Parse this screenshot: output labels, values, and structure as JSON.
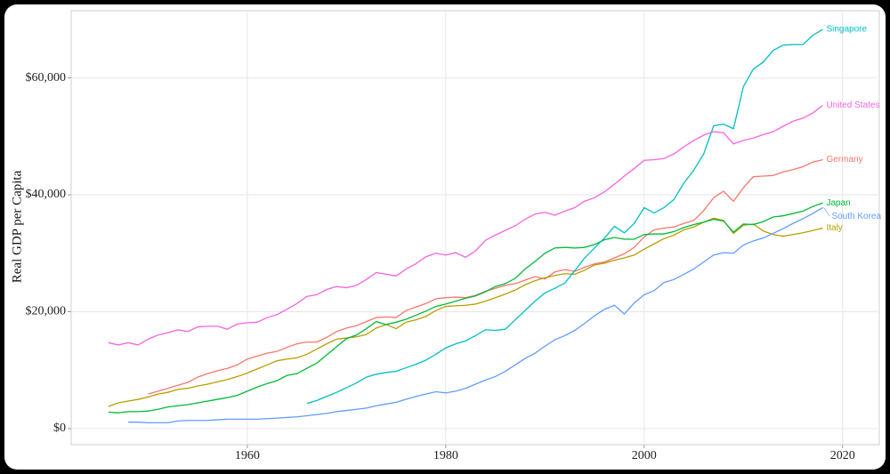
{
  "chart_data": {
    "type": "line",
    "y_label": "Real GDP per Capita",
    "x": [
      1946,
      1947,
      1948,
      1949,
      1950,
      1951,
      1952,
      1953,
      1954,
      1955,
      1956,
      1957,
      1958,
      1959,
      1960,
      1961,
      1962,
      1963,
      1964,
      1965,
      1966,
      1967,
      1968,
      1969,
      1970,
      1971,
      1972,
      1973,
      1974,
      1975,
      1976,
      1977,
      1978,
      1979,
      1980,
      1981,
      1982,
      1983,
      1984,
      1985,
      1986,
      1987,
      1988,
      1989,
      1990,
      1991,
      1992,
      1993,
      1994,
      1995,
      1996,
      1997,
      1998,
      1999,
      2000,
      2001,
      2002,
      2003,
      2004,
      2005,
      2006,
      2007,
      2008,
      2009,
      2010,
      2011,
      2012,
      2013,
      2014,
      2015,
      2016,
      2017,
      2018
    ],
    "series": [
      {
        "name": "Germany",
        "color": "#F8766D",
        "values": [
          null,
          null,
          null,
          null,
          5900,
          6400,
          6900,
          7400,
          7900,
          8800,
          9400,
          9900,
          10300,
          10900,
          11900,
          12400,
          12900,
          13200,
          13900,
          14500,
          14800,
          14800,
          15600,
          16600,
          17200,
          17600,
          18300,
          19000,
          19100,
          19000,
          20200,
          20800,
          21400,
          22200,
          22400,
          22500,
          22400,
          22800,
          23500,
          24000,
          24500,
          24800,
          25400,
          26000,
          25600,
          26800,
          27200,
          26900,
          27600,
          28200,
          28500,
          29200,
          29900,
          31000,
          32800,
          34000,
          34300,
          34500,
          35100,
          35600,
          37300,
          39500,
          40600,
          38900,
          41200,
          43100,
          43200,
          43300,
          43900,
          44300,
          44800,
          45600,
          46000
        ]
      },
      {
        "name": "Italy",
        "color": "#B79F00",
        "values": [
          3800,
          4400,
          4700,
          5000,
          5400,
          5900,
          6200,
          6700,
          6900,
          7300,
          7600,
          8000,
          8400,
          8900,
          9500,
          10200,
          10900,
          11600,
          11900,
          12100,
          12700,
          13600,
          14500,
          15300,
          15500,
          15700,
          16100,
          17200,
          17800,
          17100,
          18200,
          18600,
          19200,
          20200,
          20900,
          21000,
          21100,
          21300,
          21800,
          22400,
          23000,
          23700,
          24600,
          25300,
          25800,
          26200,
          26500,
          26400,
          27100,
          28000,
          28300,
          28800,
          29200,
          29700,
          30700,
          31600,
          32500,
          33100,
          34000,
          34500,
          35300,
          36000,
          35600,
          33400,
          34800,
          35000,
          33800,
          33200,
          32900,
          33200,
          33500,
          33900,
          34300
        ]
      },
      {
        "name": "Japan",
        "color": "#00BA38",
        "values": [
          2800,
          2700,
          2900,
          2900,
          3000,
          3300,
          3700,
          3900,
          4100,
          4400,
          4700,
          5000,
          5300,
          5700,
          6400,
          7100,
          7700,
          8200,
          9100,
          9400,
          10300,
          11200,
          12600,
          14000,
          15400,
          16000,
          17100,
          18300,
          17800,
          18200,
          18700,
          19400,
          20100,
          20900,
          21300,
          21800,
          22300,
          22700,
          23400,
          24300,
          24800,
          25700,
          27300,
          28600,
          30000,
          30900,
          31000,
          30900,
          31000,
          31500,
          32300,
          32700,
          32400,
          32400,
          33200,
          33300,
          33300,
          33700,
          34400,
          34900,
          35300,
          35800,
          35500,
          33600,
          35000,
          34900,
          35400,
          36200,
          36400,
          36800,
          37200,
          38000,
          38600
        ]
      },
      {
        "name": "Singapore",
        "color": "#00BFC4",
        "values": [
          null,
          null,
          null,
          null,
          null,
          null,
          null,
          null,
          null,
          null,
          null,
          null,
          null,
          null,
          null,
          null,
          null,
          null,
          null,
          null,
          4300,
          4800,
          5500,
          6200,
          7000,
          7800,
          8800,
          9300,
          9600,
          9800,
          10400,
          11000,
          11700,
          12700,
          13800,
          14500,
          15000,
          15900,
          16900,
          16800,
          17000,
          18600,
          20200,
          21800,
          23200,
          24000,
          24900,
          27000,
          29200,
          30900,
          32600,
          34600,
          33500,
          35100,
          37800,
          36900,
          37800,
          39200,
          42000,
          44200,
          47000,
          51800,
          52100,
          51300,
          58500,
          61500,
          62700,
          64700,
          65600,
          65700,
          65700,
          67300,
          68300
        ]
      },
      {
        "name": "South Korea",
        "color": "#619CFF",
        "values": [
          null,
          null,
          1100,
          1100,
          1000,
          1000,
          1000,
          1300,
          1400,
          1400,
          1400,
          1500,
          1600,
          1600,
          1600,
          1600,
          1700,
          1800,
          1900,
          2000,
          2200,
          2400,
          2600,
          2900,
          3100,
          3300,
          3500,
          3900,
          4200,
          4500,
          5000,
          5500,
          5900,
          6300,
          6100,
          6400,
          6900,
          7600,
          8300,
          8900,
          9800,
          10900,
          12000,
          12900,
          14100,
          15200,
          15900,
          16800,
          18000,
          19300,
          20400,
          21100,
          19600,
          21500,
          22900,
          23600,
          25000,
          25500,
          26400,
          27300,
          28500,
          29700,
          30100,
          30000,
          31400,
          32100,
          32600,
          33400,
          34200,
          35100,
          35900,
          36800,
          37800
        ]
      },
      {
        "name": "United States",
        "color": "#F564E3",
        "values": [
          14700,
          14300,
          14700,
          14300,
          15300,
          16000,
          16400,
          16900,
          16600,
          17400,
          17500,
          17500,
          17000,
          17900,
          18100,
          18200,
          19000,
          19500,
          20400,
          21400,
          22600,
          22900,
          23800,
          24300,
          24100,
          24500,
          25500,
          26700,
          26400,
          26100,
          27300,
          28200,
          29400,
          30000,
          29700,
          30100,
          29300,
          30400,
          32200,
          33100,
          33900,
          34700,
          35800,
          36700,
          37000,
          36500,
          37200,
          37800,
          38900,
          39500,
          40500,
          41800,
          43200,
          44500,
          45900,
          46000,
          46200,
          47000,
          48200,
          49300,
          50200,
          50800,
          50600,
          48700,
          49300,
          49700,
          50300,
          50800,
          51700,
          52600,
          53100,
          54000,
          55300
        ]
      }
    ],
    "xlim": [
      1942.25,
      2023.7
    ],
    "xticks": [
      1960,
      1980,
      2000,
      2020
    ],
    "ylim": [
      -2750,
      71500
    ],
    "yticks": [
      {
        "value": 0,
        "label": "$0"
      },
      {
        "value": 20000,
        "label": "$20,000"
      },
      {
        "value": 40000,
        "label": "$40,000"
      },
      {
        "value": 60000,
        "label": "$60,000"
      }
    ],
    "grid": true
  }
}
